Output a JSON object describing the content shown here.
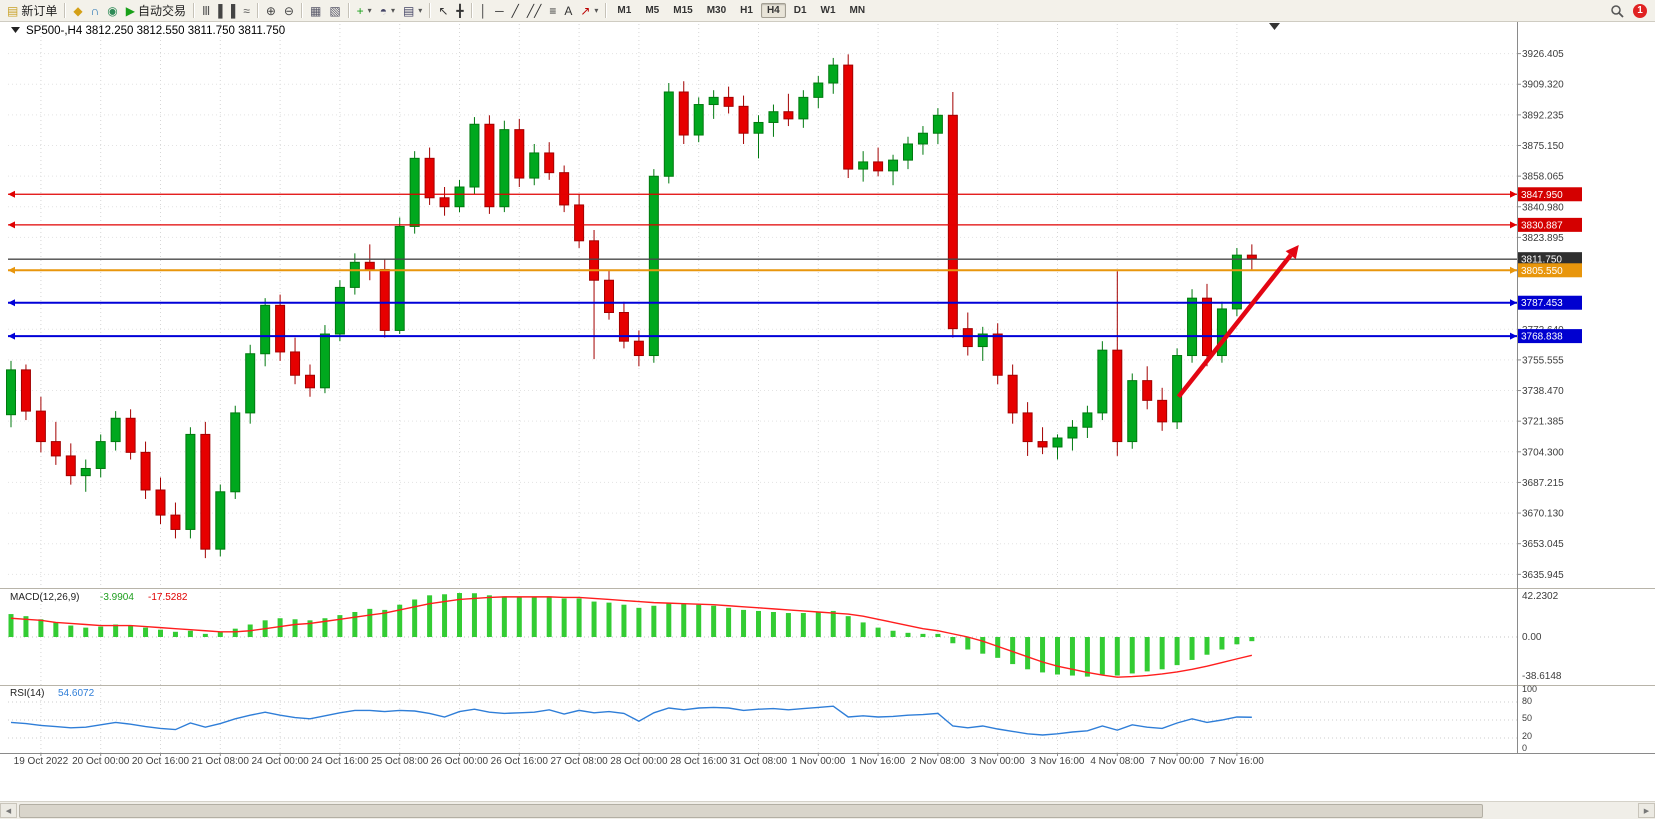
{
  "toolbar": {
    "new_order_label": "新订单",
    "auto_trading_label": "自动交易",
    "timeframes": [
      "M1",
      "M5",
      "M15",
      "M30",
      "H1",
      "H4",
      "D1",
      "W1",
      "MN"
    ],
    "active_timeframe": "H4",
    "notification_badge": "1",
    "left_tools": [
      {
        "name": "alerts-button",
        "icon": "megaphone-icon"
      },
      {
        "name": "support-button",
        "icon": "headset-icon"
      },
      {
        "name": "community-button",
        "icon": "globe-icon"
      }
    ],
    "tools": [
      "sep",
      {
        "name": "bar-chart-button",
        "icon": "bar-chart-icon"
      },
      {
        "name": "candlestick-chart-button",
        "icon": "candlestick-icon"
      },
      {
        "name": "line-chart-button",
        "icon": "line-chart-icon"
      },
      "sep",
      {
        "name": "zoom-in-button",
        "icon": "zoom-in-icon"
      },
      {
        "name": "zoom-out-button",
        "icon": "zoom-out-icon"
      },
      "sep",
      {
        "name": "tile-windows-button",
        "icon": "tile-windows-icon"
      },
      {
        "name": "new-chart-button",
        "icon": "new-chart-icon"
      },
      "sep",
      {
        "name": "indicators-button",
        "icon": "indicators-icon",
        "dropdown": true
      },
      {
        "name": "periods-button",
        "icon": "clock-icon",
        "dropdown": true
      },
      {
        "name": "templates-button",
        "icon": "template-icon",
        "dropdown": true
      },
      "sep",
      {
        "name": "cursor-button",
        "icon": "cursor-icon"
      },
      {
        "name": "crosshair-button",
        "icon": "crosshair-icon"
      },
      "sep",
      {
        "name": "vertical-line-button",
        "icon": "vertical-line-icon"
      },
      {
        "name": "horizontal-line-button",
        "icon": "horizontal-line-icon"
      },
      {
        "name": "trendline-button",
        "icon": "trendline-icon"
      },
      {
        "name": "channel-button",
        "icon": "channel-icon"
      },
      {
        "name": "fibonacci-button",
        "icon": "fibonacci-icon"
      },
      {
        "name": "text-button",
        "icon": "text-icon"
      },
      {
        "name": "arrows-button",
        "icon": "arrow-icon",
        "dropdown": true
      },
      "sep"
    ]
  },
  "chart_header": {
    "symbol_period": "SP500-,H4",
    "open": "3812.250",
    "high": "3812.550",
    "low": "3811.750",
    "close": "3811.750"
  },
  "colors": {
    "candle_up": "#00a81e",
    "candle_up_border": "#00790f",
    "candle_down": "#e60000",
    "candle_down_border": "#a30000",
    "grid": "#d6d6d6",
    "macd_histogram": "#33cc33",
    "macd_signal": "#ff1e1e",
    "rsi_line": "#2f7ed8",
    "trend_arrow": "#e30613",
    "axis_text": "#3c3c3c"
  },
  "chart_data": [
    {
      "type": "candlestick",
      "symbol": "SP500-",
      "timeframe": "H4",
      "x_labels": [
        "19 Oct 2022",
        "20 Oct 00:00",
        "20 Oct 16:00",
        "21 Oct 08:00",
        "24 Oct 00:00",
        "24 Oct 16:00",
        "25 Oct 08:00",
        "26 Oct 00:00",
        "26 Oct 16:00",
        "27 Oct 08:00",
        "28 Oct 00:00",
        "28 Oct 16:00",
        "31 Oct 08:00",
        "1 Nov 00:00",
        "1 Nov 16:00",
        "2 Nov 08:00",
        "3 Nov 00:00",
        "3 Nov 16:00",
        "4 Nov 08:00",
        "7 Nov 00:00",
        "7 Nov 16:00"
      ],
      "x_label_bar_indices": [
        2,
        6,
        10,
        14,
        18,
        22,
        26,
        30,
        34,
        38,
        42,
        46,
        50,
        54,
        58,
        62,
        66,
        70,
        74,
        78,
        82
      ],
      "candles": [
        [
          3725,
          3755,
          3718,
          3750
        ],
        [
          3750,
          3753,
          3722,
          3727
        ],
        [
          3727,
          3735,
          3704,
          3710
        ],
        [
          3710,
          3721,
          3697,
          3702
        ],
        [
          3702,
          3709,
          3686,
          3691
        ],
        [
          3691,
          3700,
          3682,
          3695
        ],
        [
          3695,
          3714,
          3690,
          3710
        ],
        [
          3710,
          3727,
          3705,
          3723
        ],
        [
          3723,
          3728,
          3700,
          3704
        ],
        [
          3704,
          3710,
          3678,
          3683
        ],
        [
          3683,
          3690,
          3664,
          3669
        ],
        [
          3669,
          3676,
          3656,
          3661
        ],
        [
          3661,
          3718,
          3656,
          3714
        ],
        [
          3714,
          3721,
          3645,
          3650
        ],
        [
          3650,
          3686,
          3646,
          3682
        ],
        [
          3682,
          3730,
          3678,
          3726
        ],
        [
          3726,
          3764,
          3720,
          3759
        ],
        [
          3759,
          3790,
          3752,
          3786
        ],
        [
          3786,
          3792,
          3755,
          3760
        ],
        [
          3760,
          3768,
          3742,
          3747
        ],
        [
          3747,
          3753,
          3735,
          3740
        ],
        [
          3740,
          3775,
          3737,
          3770
        ],
        [
          3770,
          3800,
          3766,
          3796
        ],
        [
          3796,
          3815,
          3792,
          3810
        ],
        [
          3810,
          3820,
          3800,
          3806
        ],
        [
          3806,
          3812,
          3768,
          3772
        ],
        [
          3772,
          3835,
          3770,
          3830
        ],
        [
          3830,
          3872,
          3826,
          3868
        ],
        [
          3868,
          3874,
          3842,
          3846
        ],
        [
          3846,
          3852,
          3836,
          3841
        ],
        [
          3841,
          3856,
          3838,
          3852
        ],
        [
          3852,
          3891,
          3848,
          3887
        ],
        [
          3887,
          3892,
          3837,
          3841
        ],
        [
          3841,
          3889,
          3838,
          3884
        ],
        [
          3884,
          3890,
          3852,
          3857
        ],
        [
          3857,
          3876,
          3853,
          3871
        ],
        [
          3871,
          3877,
          3856,
          3860
        ],
        [
          3860,
          3864,
          3838,
          3842
        ],
        [
          3842,
          3848,
          3818,
          3822
        ],
        [
          3822,
          3828,
          3756,
          3800
        ],
        [
          3800,
          3806,
          3778,
          3782
        ],
        [
          3782,
          3788,
          3762,
          3766
        ],
        [
          3766,
          3772,
          3752,
          3758
        ],
        [
          3758,
          3862,
          3754,
          3858
        ],
        [
          3858,
          3910,
          3854,
          3905
        ],
        [
          3905,
          3911,
          3876,
          3881
        ],
        [
          3881,
          3902,
          3877,
          3898
        ],
        [
          3898,
          3906,
          3890,
          3902
        ],
        [
          3902,
          3908,
          3893,
          3897
        ],
        [
          3897,
          3903,
          3876,
          3882
        ],
        [
          3882,
          3892,
          3868,
          3888
        ],
        [
          3888,
          3898,
          3880,
          3894
        ],
        [
          3894,
          3904,
          3886,
          3890
        ],
        [
          3890,
          3906,
          3885,
          3902
        ],
        [
          3902,
          3914,
          3896,
          3910
        ],
        [
          3910,
          3924,
          3904,
          3920
        ],
        [
          3920,
          3926,
          3857,
          3862
        ],
        [
          3862,
          3872,
          3855,
          3866
        ],
        [
          3866,
          3874,
          3858,
          3861
        ],
        [
          3861,
          3870,
          3853,
          3867
        ],
        [
          3867,
          3880,
          3862,
          3876
        ],
        [
          3876,
          3886,
          3870,
          3882
        ],
        [
          3882,
          3896,
          3876,
          3892
        ],
        [
          3892,
          3905,
          3768,
          3773
        ],
        [
          3773,
          3782,
          3758,
          3763
        ],
        [
          3763,
          3774,
          3755,
          3770
        ],
        [
          3770,
          3776,
          3742,
          3747
        ],
        [
          3747,
          3753,
          3720,
          3726
        ],
        [
          3726,
          3732,
          3702,
          3710
        ],
        [
          3710,
          3718,
          3703,
          3707
        ],
        [
          3707,
          3714,
          3700,
          3712
        ],
        [
          3712,
          3722,
          3705,
          3718
        ],
        [
          3718,
          3730,
          3712,
          3726
        ],
        [
          3726,
          3766,
          3722,
          3761
        ],
        [
          3761,
          3805,
          3702,
          3710
        ],
        [
          3710,
          3748,
          3706,
          3744
        ],
        [
          3744,
          3752,
          3728,
          3733
        ],
        [
          3733,
          3740,
          3716,
          3721
        ],
        [
          3721,
          3762,
          3717,
          3758
        ],
        [
          3758,
          3795,
          3754,
          3790
        ],
        [
          3790,
          3798,
          3752,
          3758
        ],
        [
          3758,
          3788,
          3754,
          3784
        ],
        [
          3784,
          3818,
          3780,
          3814
        ],
        [
          3814,
          3820,
          3806,
          3812
        ]
      ],
      "y_axis": {
        "min": 3630,
        "max": 3934,
        "labels": [
          "3926.405",
          "3909.320",
          "3892.235",
          "3875.150",
          "3858.065",
          "3840.980",
          "3823.895",
          "3772.640",
          "3755.555",
          "3738.470",
          "3721.385",
          "3704.300",
          "3687.215",
          "3670.130",
          "3653.045",
          "3635.945"
        ]
      },
      "horizontal_lines": [
        {
          "price": 3847.95,
          "color": "#e00000",
          "width": 1.3,
          "current": false
        },
        {
          "price": 3830.887,
          "color": "#e00000",
          "width": 1.3,
          "current": false
        },
        {
          "price": 3811.75,
          "color": "#484848",
          "width": 1.3,
          "current": true
        },
        {
          "price": 3805.55,
          "color": "#e8960c",
          "width": 2,
          "current": false
        },
        {
          "price": 3787.453,
          "color": "#0000d8",
          "width": 2,
          "current": false
        },
        {
          "price": 3768.838,
          "color": "#0000d8",
          "width": 2,
          "current": false
        }
      ],
      "badges": [
        {
          "text": "3847.950",
          "color": "#d40000",
          "price": 3847.95
        },
        {
          "text": "3830.887",
          "color": "#d40000",
          "price": 3830.887
        },
        {
          "text": "3811.750",
          "color": "#2f2f2f",
          "price": 3811.75
        },
        {
          "text": "3805.550",
          "color": "#e8960c",
          "price": 3805.55
        },
        {
          "text": "3787.453",
          "color": "#0000d0",
          "price": 3787.453
        },
        {
          "text": "3768.838",
          "color": "#0000d0",
          "price": 3768.838
        }
      ],
      "trend_arrow": {
        "from_bar": 78.1,
        "from_price": 3735,
        "to_bar": 85.6,
        "to_price": 3814,
        "color": "#e30613"
      }
    },
    {
      "type": "macd_histogram",
      "label": "MACD(12,26,9)",
      "values_display": [
        "-3.9904",
        "-17.5282"
      ],
      "y_axis_labels": [
        "42.2302",
        "0.00",
        "-38.6148"
      ],
      "histogram": [
        22,
        20,
        17,
        14,
        11,
        9,
        10,
        12,
        11,
        9,
        7,
        5,
        6,
        3,
        5,
        8,
        12,
        16,
        18,
        17,
        16,
        18,
        21,
        24,
        27,
        26,
        31,
        36,
        40,
        41,
        42.2,
        42,
        40,
        39,
        38,
        38,
        39,
        37,
        37,
        34,
        33,
        31,
        28,
        30,
        33,
        32,
        31,
        30,
        28,
        26,
        25,
        24,
        23,
        23,
        24,
        25,
        20,
        14,
        9,
        6,
        4,
        3,
        3,
        -6,
        -12,
        -16,
        -20,
        -26,
        -31,
        -34,
        -36,
        -37,
        -38,
        -36,
        -37,
        -35,
        -33,
        -31,
        -27,
        -22,
        -17,
        -12,
        -7,
        -4
      ],
      "signal": [
        18,
        17,
        16,
        14,
        13,
        12,
        11,
        11,
        11,
        10,
        9,
        8,
        7,
        6,
        5,
        5,
        6,
        8,
        10,
        12,
        13,
        15,
        17,
        19,
        21,
        23,
        26,
        29,
        32,
        34,
        36,
        37,
        38,
        38.5,
        38.5,
        38.5,
        38.5,
        38,
        38,
        37,
        36,
        35,
        34,
        33,
        32.5,
        32,
        31.5,
        31,
        30,
        29,
        28,
        27,
        26,
        25,
        24,
        23,
        22,
        20,
        17,
        14,
        11,
        8,
        6,
        3,
        0,
        -4,
        -9,
        -14,
        -19,
        -24,
        -28,
        -31,
        -34,
        -36.5,
        -38.6,
        -38,
        -37,
        -35.5,
        -33.5,
        -31,
        -28,
        -24.5,
        -21,
        -17.53
      ]
    },
    {
      "type": "rsi_line",
      "label": "RSI(14)",
      "value_display": "54.6072",
      "levels": [
        80,
        50,
        20
      ],
      "y_axis_labels": [
        "100",
        "80",
        "50",
        "20",
        "0"
      ],
      "values": [
        46,
        44,
        41,
        39,
        37,
        38,
        42,
        46,
        43,
        39,
        36,
        34,
        45,
        38,
        44,
        52,
        58,
        63,
        58,
        54,
        52,
        57,
        62,
        66,
        66,
        64,
        66,
        65,
        61,
        55,
        64,
        68,
        63,
        61,
        62,
        63,
        67,
        60,
        66,
        62,
        64,
        61,
        48,
        62,
        70,
        67,
        70,
        71,
        70,
        66,
        68,
        69,
        67,
        69,
        71,
        73,
        55,
        57,
        55,
        56,
        58,
        59,
        61,
        40,
        37,
        40,
        35,
        31,
        27,
        25,
        27,
        30,
        32,
        40,
        33,
        42,
        38,
        36,
        45,
        52,
        46,
        50,
        55,
        54.6
      ]
    }
  ]
}
